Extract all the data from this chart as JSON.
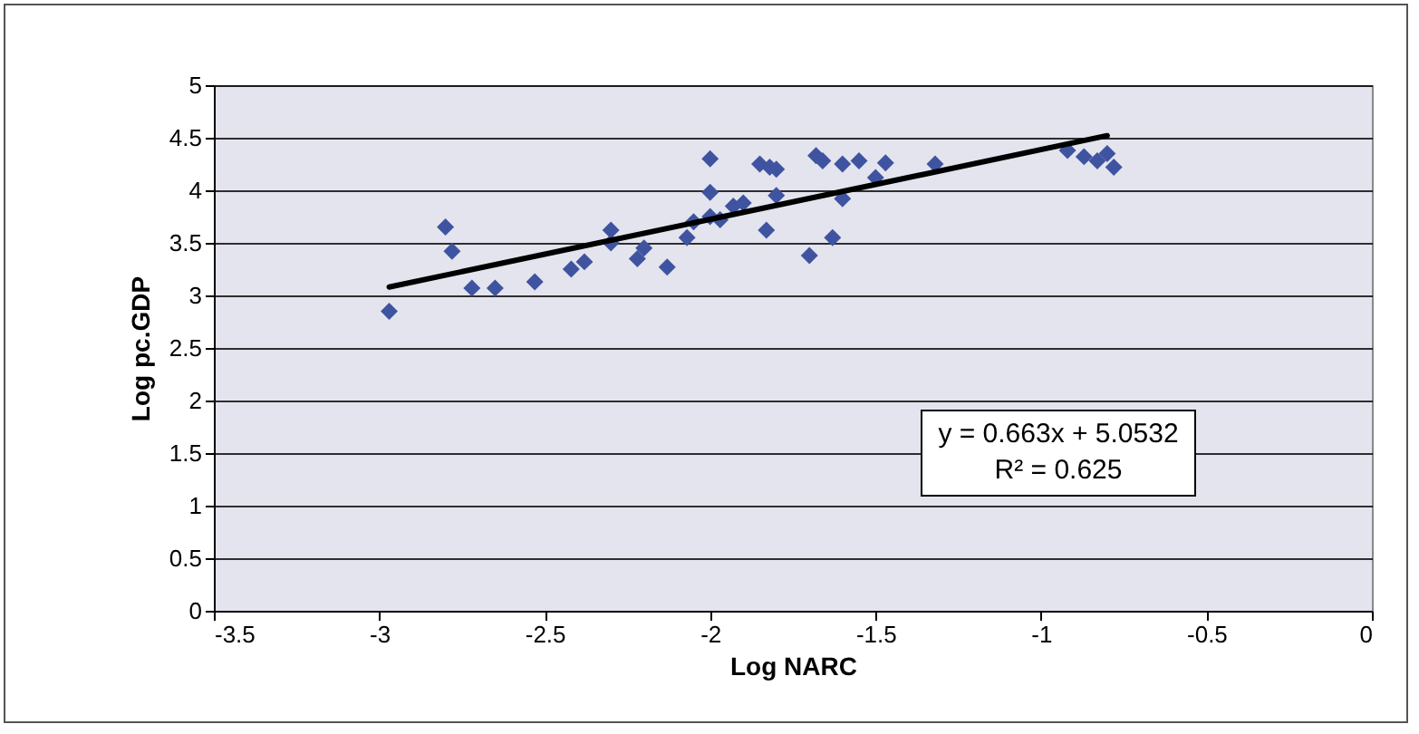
{
  "chart_data": {
    "type": "scatter",
    "xlabel": "Log NARC",
    "ylabel": "Log pc.GDP",
    "xlim": [
      -3.5,
      0
    ],
    "xticks": [
      -3.5,
      -3,
      -2.5,
      -2,
      -1.5,
      -1,
      -0.5,
      0
    ],
    "ylim": [
      0,
      5
    ],
    "yticks": [
      0,
      0.5,
      1,
      1.5,
      2,
      2.5,
      3,
      3.5,
      4,
      4.5,
      5
    ],
    "grid": "y",
    "marker": "diamond",
    "annotations": [
      "y = 0.663x + 5.0532",
      "R² = 0.625"
    ],
    "series": [
      {
        "color": "#3f54a0",
        "x": [
          -2.97,
          -2.8,
          -2.78,
          -2.72,
          -2.65,
          -2.53,
          -2.42,
          -2.38,
          -2.3,
          -2.3,
          -2.22,
          -2.2,
          -2.13,
          -2.07,
          -2.05,
          -2.0,
          -2.0,
          -2.0,
          -1.97,
          -1.93,
          -1.9,
          -1.85,
          -1.83,
          -1.82,
          -1.8,
          -1.8,
          -1.68,
          -1.66,
          -1.7,
          -1.63,
          -1.6,
          -1.6,
          -1.55,
          -1.5,
          -1.47,
          -1.32,
          -0.92,
          -0.87,
          -0.83,
          -0.8,
          -0.78
        ],
        "values": [
          2.85,
          3.65,
          3.42,
          3.07,
          3.07,
          3.13,
          3.25,
          3.32,
          3.62,
          3.5,
          3.35,
          3.45,
          3.27,
          3.55,
          3.7,
          3.75,
          4.3,
          3.98,
          3.72,
          3.85,
          3.88,
          4.25,
          3.62,
          4.22,
          4.2,
          3.95,
          4.33,
          4.28,
          3.38,
          3.55,
          4.25,
          3.92,
          4.28,
          4.12,
          4.26,
          4.25,
          4.38,
          4.32,
          4.28,
          4.35,
          4.22
        ]
      },
      {
        "type": "line",
        "marker": "none",
        "color": "#000000",
        "x": [
          -2.97,
          -0.8
        ],
        "values": [
          3.08,
          4.52
        ]
      }
    ]
  }
}
